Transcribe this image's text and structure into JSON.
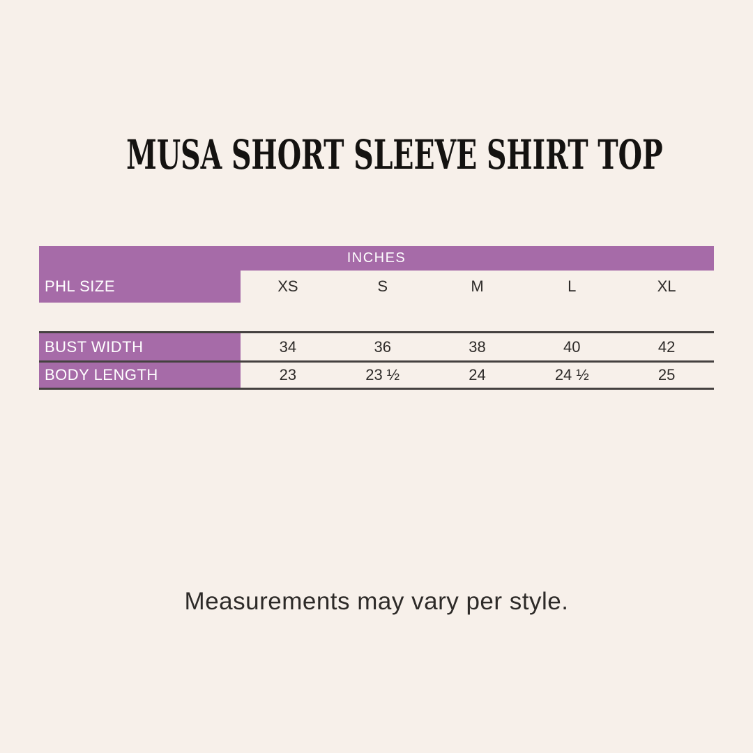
{
  "page": {
    "title": "MUSA SHORT SLEEVE SHIRT TOP",
    "footnote": "Measurements may vary per style."
  },
  "colors": {
    "bg": "#f7f0ea",
    "purple": "#a66ba8",
    "line": "#454140",
    "dark_text": "#2d2a28",
    "header_text": "#ffffff",
    "title_text": "#141210"
  },
  "size_chart": {
    "unit_header": "INCHES",
    "row_label_header": "PHL SIZE",
    "sizes": [
      "XS",
      "S",
      "M",
      "L",
      "XL"
    ],
    "rows": [
      {
        "label": "BUST WIDTH",
        "values": [
          "34",
          "36",
          "38",
          "40",
          "42"
        ]
      },
      {
        "label": "BODY LENGTH",
        "values": [
          "23",
          "23 ½",
          "24",
          "24 ½",
          "25"
        ]
      }
    ]
  }
}
